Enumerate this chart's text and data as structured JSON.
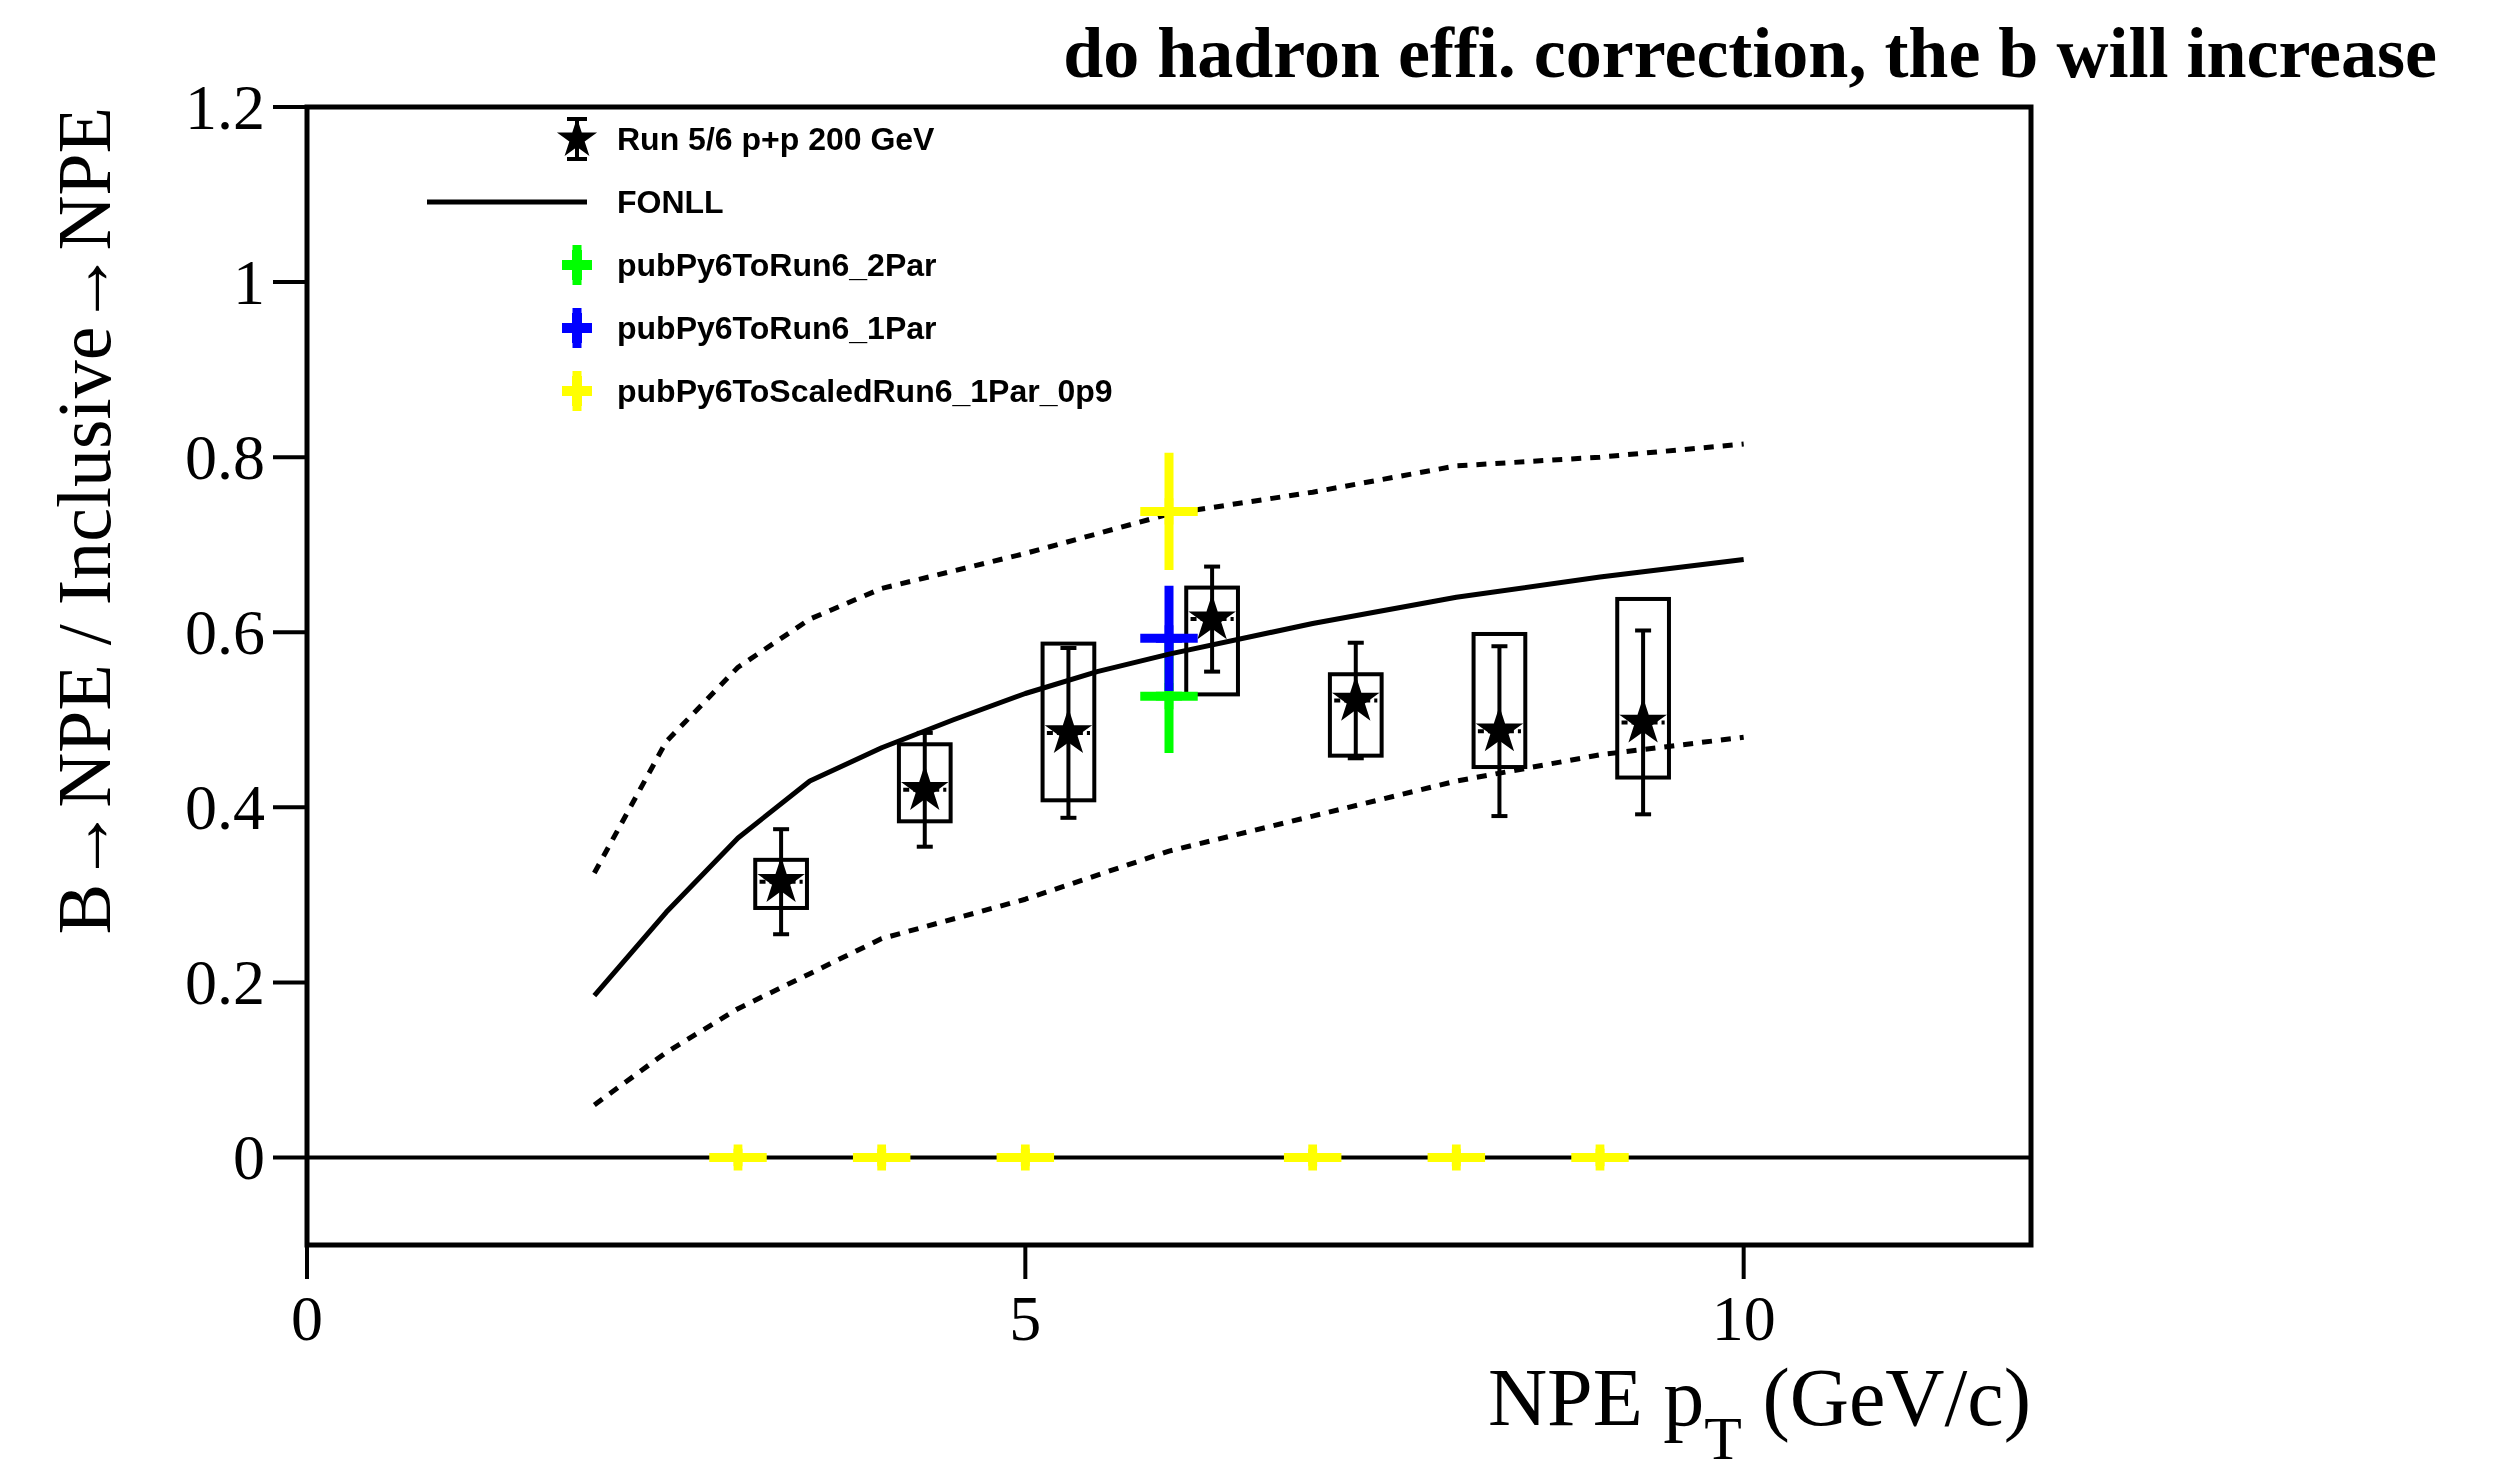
{
  "chart_data": {
    "type": "scatter",
    "title": "do hadron effi. correction, the b will increase",
    "xlabel": "NPE p$_{T}$ (GeV/c)",
    "ylabel": "B→NPE / Inclusive→NPE",
    "xlim": [
      0,
      12
    ],
    "ylim": [
      -0.1,
      1.2
    ],
    "xticks": [
      0,
      5,
      10
    ],
    "yticks": [
      0,
      0.2,
      0.4,
      0.6,
      0.8,
      1,
      1.2
    ],
    "grid": false,
    "legend": "top left",
    "ref_lines": [
      {
        "axis": "y",
        "value": 0,
        "color": "#000000",
        "line_style": "solid"
      }
    ],
    "series": [
      {
        "type": "bar",
        "color": "#000000",
        "x": [
          3.3,
          4.3,
          5.3,
          6.3,
          7.3,
          8.3,
          9.3
        ],
        "base": [
          0.285,
          0.384,
          0.408,
          0.529,
          0.459,
          0.446,
          0.434
        ],
        "values": [
          0.055,
          0.088,
          0.179,
          0.122,
          0.093,
          0.152,
          0.204
        ]
      },
      {
        "name": "Run 5/6 p+p 200 GeV",
        "color": "#000000",
        "marker": "star",
        "x": [
          3.3,
          4.3,
          5.3,
          6.3,
          7.3,
          8.3,
          9.3
        ],
        "values": [
          0.315,
          0.42,
          0.485,
          0.615,
          0.522,
          0.487,
          0.497
        ],
        "errors": [
          0.06,
          0.065,
          0.097,
          0.06,
          0.066,
          0.097,
          0.105
        ],
        "xerrors": [
          0.15,
          0.15,
          0.15,
          0.15,
          0.15,
          0.15,
          0.15
        ]
      },
      {
        "type": "line",
        "name": "FONLL",
        "color": "#000000",
        "line_style": "solid",
        "x": [
          2,
          2.5,
          3,
          3.5,
          4,
          4.5,
          5,
          5.5,
          6,
          7,
          8,
          9,
          10
        ],
        "values": [
          0.185,
          0.28,
          0.365,
          0.43,
          0.468,
          0.5,
          0.53,
          0.555,
          0.575,
          0.61,
          0.64,
          0.663,
          0.683
        ]
      },
      {
        "type": "line",
        "color": "#000000",
        "line_style": "dashed",
        "x": [
          2,
          2.5,
          3,
          3.5,
          4,
          5,
          6,
          7,
          8,
          9,
          10
        ],
        "values": [
          0.325,
          0.475,
          0.56,
          0.615,
          0.65,
          0.69,
          0.735,
          0.76,
          0.79,
          0.8,
          0.815
        ]
      },
      {
        "type": "line",
        "color": "#000000",
        "line_style": "dashed",
        "x": [
          2,
          2.5,
          3,
          3.5,
          4,
          5,
          6,
          7,
          8,
          9,
          10
        ],
        "values": [
          0.06,
          0.12,
          0.17,
          0.21,
          0.25,
          0.295,
          0.35,
          0.39,
          0.43,
          0.46,
          0.48
        ]
      },
      {
        "name": "pubPy6ToRun6_2Par",
        "color": "#00ff00",
        "marker": "cross",
        "x": [
          6
        ],
        "values": [
          0.527
        ],
        "errors": [
          0.065
        ],
        "xerrors": [
          0.2
        ]
      },
      {
        "name": "pubPy6ToRun6_1Par",
        "color": "#0000ff",
        "marker": "cross",
        "x": [
          6
        ],
        "values": [
          0.593
        ],
        "errors": [
          0.06
        ],
        "xerrors": [
          0.2
        ]
      },
      {
        "name": "pubPy6ToScaledRun6_1Par_0p9",
        "color": "#ffff00",
        "marker": "cross",
        "x": [
          3,
          4,
          5,
          6,
          7,
          8,
          9
        ],
        "values": [
          0,
          0,
          0,
          0.738,
          0,
          0,
          0
        ],
        "errors": [
          0.01,
          0.01,
          0.01,
          0.067,
          0.01,
          0.01,
          0.01
        ],
        "xerrors": [
          0.2,
          0.2,
          0.2,
          0.2,
          0.2,
          0.2,
          0.2
        ]
      }
    ]
  }
}
